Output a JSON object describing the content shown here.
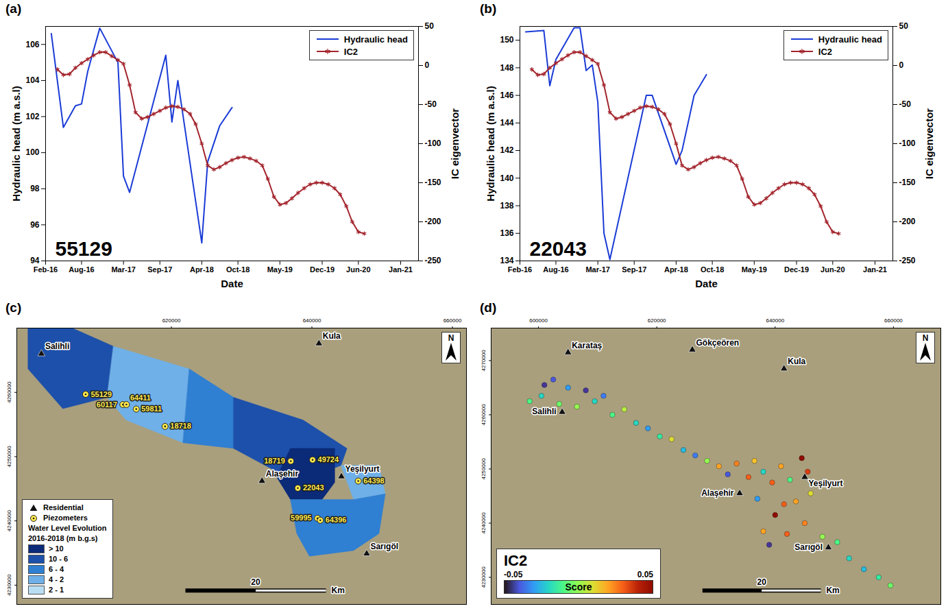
{
  "chart_data": [
    {
      "type": "line",
      "panel_label": "(a)",
      "annotation": "55129",
      "xlabel": "Date",
      "ylabel": "Hydraulic head (m a.s.l)",
      "y2label": "IC eigenvector",
      "xlim": [
        "2016-02",
        "2021-04"
      ],
      "xticks": [
        {
          "value": "2016-02",
          "label": "Feb-16"
        },
        {
          "value": "2016-08",
          "label": "Aug-16"
        },
        {
          "value": "2017-03",
          "label": "Mar-17"
        },
        {
          "value": "2017-09",
          "label": "Sep-17"
        },
        {
          "value": "2018-04",
          "label": "Apr-18"
        },
        {
          "value": "2018-10",
          "label": "Oct-18"
        },
        {
          "value": "2019-05",
          "label": "May-19"
        },
        {
          "value": "2019-12",
          "label": "Dec-19"
        },
        {
          "value": "2020-06",
          "label": "Jun-20"
        },
        {
          "value": "2021-01",
          "label": "Jan-21"
        }
      ],
      "ylim": [
        94,
        107
      ],
      "yticks": [
        94,
        96,
        98,
        100,
        102,
        104,
        106
      ],
      "y2lim": [
        -250,
        50
      ],
      "y2ticks": [
        -250,
        -200,
        -150,
        -100,
        -50,
        0,
        50
      ],
      "legend": "top-right",
      "series": [
        {
          "name": "Hydraulic head",
          "color": "#1a3bd6",
          "marker": "none",
          "line_style": "solid",
          "x": [
            "2016-03",
            "2016-05",
            "2016-07",
            "2016-08",
            "2016-09",
            "2016-11",
            "2017-02",
            "2017-03",
            "2017-04",
            "2017-10",
            "2017-11",
            "2017-12",
            "2018-04",
            "2018-05",
            "2018-07",
            "2018-09"
          ],
          "values": [
            106.6,
            101.4,
            102.6,
            102.7,
            104.5,
            106.9,
            105.0,
            98.7,
            97.8,
            105.4,
            101.7,
            104.0,
            95.0,
            99.5,
            101.5,
            102.5
          ]
        },
        {
          "name": "IC2",
          "color": "#a3232b",
          "marker": "asterisk",
          "line_style": "solid",
          "axis": "y2",
          "x": [
            "2016-04",
            "2016-05",
            "2016-06",
            "2016-07",
            "2016-08",
            "2016-09",
            "2016-10",
            "2016-11",
            "2016-12",
            "2017-01",
            "2017-02",
            "2017-03",
            "2017-04",
            "2017-05",
            "2017-06",
            "2017-07",
            "2017-08",
            "2017-09",
            "2017-10",
            "2017-11",
            "2017-12",
            "2018-01",
            "2018-02",
            "2018-03",
            "2018-04",
            "2018-05",
            "2018-06",
            "2018-07",
            "2018-08",
            "2018-09",
            "2018-10",
            "2018-11",
            "2018-12",
            "2019-01",
            "2019-02",
            "2019-03",
            "2019-04",
            "2019-05",
            "2019-06",
            "2019-07",
            "2019-08",
            "2019-09",
            "2019-10",
            "2019-11",
            "2019-12",
            "2020-01",
            "2020-02",
            "2020-03",
            "2020-04",
            "2020-05",
            "2020-06",
            "2020-07"
          ],
          "values": [
            -5,
            -12,
            -11,
            -3,
            3,
            8,
            13,
            17,
            17,
            12,
            7,
            2,
            -25,
            -60,
            -68,
            -66,
            -62,
            -58,
            -54,
            -52,
            -53,
            -56,
            -62,
            -75,
            -100,
            -128,
            -133,
            -130,
            -125,
            -121,
            -118,
            -117,
            -119,
            -122,
            -128,
            -145,
            -168,
            -178,
            -176,
            -170,
            -163,
            -157,
            -152,
            -150,
            -150,
            -152,
            -157,
            -165,
            -180,
            -200,
            -213,
            -215
          ]
        }
      ]
    },
    {
      "type": "line",
      "panel_label": "(b)",
      "annotation": "22043",
      "xlabel": "Date",
      "ylabel": "Hydraulic head (m a.s.l)",
      "y2label": "IC eigenvector",
      "xlim": [
        "2016-02",
        "2021-04"
      ],
      "xticks": [
        {
          "value": "2016-02",
          "label": "Feb-16"
        },
        {
          "value": "2016-08",
          "label": "Aug-16"
        },
        {
          "value": "2017-03",
          "label": "Mar-17"
        },
        {
          "value": "2017-09",
          "label": "Sep-17"
        },
        {
          "value": "2018-04",
          "label": "Apr-18"
        },
        {
          "value": "2018-10",
          "label": "Oct-18"
        },
        {
          "value": "2019-05",
          "label": "May-19"
        },
        {
          "value": "2019-12",
          "label": "Dec-19"
        },
        {
          "value": "2020-06",
          "label": "Jun-20"
        },
        {
          "value": "2021-01",
          "label": "Jan-21"
        }
      ],
      "ylim": [
        134,
        151
      ],
      "yticks": [
        134,
        136,
        138,
        140,
        142,
        144,
        146,
        148,
        150
      ],
      "y2lim": [
        -250,
        50
      ],
      "y2ticks": [
        -250,
        -200,
        -150,
        -100,
        -50,
        0,
        50
      ],
      "legend": "top-right",
      "series": [
        {
          "name": "Hydraulic head",
          "color": "#1a3bd6",
          "marker": "none",
          "line_style": "solid",
          "x": [
            "2016-03",
            "2016-06",
            "2016-07",
            "2016-08",
            "2016-11",
            "2016-12",
            "2017-01",
            "2017-02",
            "2017-03",
            "2017-04",
            "2017-05",
            "2017-11",
            "2017-12",
            "2018-04",
            "2018-05",
            "2018-07",
            "2018-09"
          ],
          "values": [
            150.6,
            150.7,
            146.7,
            148.6,
            150.9,
            150.9,
            147.8,
            148.2,
            145.5,
            136.0,
            134.1,
            146.0,
            146.0,
            141.0,
            142.0,
            146.0,
            147.5
          ]
        },
        {
          "name": "IC2",
          "color": "#a3232b",
          "marker": "asterisk",
          "line_style": "solid",
          "axis": "y2",
          "x": [
            "2016-04",
            "2016-05",
            "2016-06",
            "2016-07",
            "2016-08",
            "2016-09",
            "2016-10",
            "2016-11",
            "2016-12",
            "2017-01",
            "2017-02",
            "2017-03",
            "2017-04",
            "2017-05",
            "2017-06",
            "2017-07",
            "2017-08",
            "2017-09",
            "2017-10",
            "2017-11",
            "2017-12",
            "2018-01",
            "2018-02",
            "2018-03",
            "2018-04",
            "2018-05",
            "2018-06",
            "2018-07",
            "2018-08",
            "2018-09",
            "2018-10",
            "2018-11",
            "2018-12",
            "2019-01",
            "2019-02",
            "2019-03",
            "2019-04",
            "2019-05",
            "2019-06",
            "2019-07",
            "2019-08",
            "2019-09",
            "2019-10",
            "2019-11",
            "2019-12",
            "2020-01",
            "2020-02",
            "2020-03",
            "2020-04",
            "2020-05",
            "2020-06",
            "2020-07"
          ],
          "values": [
            -5,
            -12,
            -11,
            -3,
            3,
            8,
            13,
            17,
            17,
            12,
            7,
            2,
            -25,
            -60,
            -68,
            -66,
            -62,
            -58,
            -54,
            -52,
            -53,
            -56,
            -62,
            -75,
            -100,
            -128,
            -133,
            -130,
            -125,
            -121,
            -118,
            -117,
            -119,
            -122,
            -128,
            -145,
            -168,
            -178,
            -176,
            -170,
            -163,
            -157,
            -152,
            -150,
            -150,
            -152,
            -157,
            -165,
            -180,
            -200,
            -213,
            -215
          ]
        }
      ]
    },
    {
      "type": "map",
      "panel_label": "(c)",
      "xlim": [
        598000,
        662000
      ],
      "ylim": [
        4227000,
        4270000
      ],
      "xticks": [
        620000,
        640000,
        660000
      ],
      "yticks": [
        4230000,
        4240000,
        4250000,
        4260000
      ],
      "legend": "bottom-left",
      "legend_title": [
        "Water Level Evolution",
        "2016-2018 (m b.g.s)"
      ],
      "classes": [
        {
          "name": "> 10",
          "color": "#0b2a78"
        },
        {
          "name": "10 - 6",
          "color": "#1d50aa"
        },
        {
          "name": "6 - 4",
          "color": "#2f7fd2"
        },
        {
          "name": "4 - 2",
          "color": "#6fb0e8"
        },
        {
          "name": "2 - 1",
          "color": "#b9def4"
        }
      ],
      "zones": [
        {
          "class": "10 - 6",
          "polygon": [
            [
              599600,
              4270000
            ],
            [
              605900,
              4270000
            ],
            [
              611750,
              4267170
            ],
            [
              610850,
              4259230
            ],
            [
              604550,
              4257460
            ],
            [
              599600,
              4263640
            ]
          ]
        },
        {
          "class": "4 - 2",
          "polygon": [
            [
              611750,
              4267170
            ],
            [
              622550,
              4263640
            ],
            [
              621650,
              4252160
            ],
            [
              613550,
              4255690
            ],
            [
              610850,
              4259230
            ]
          ]
        },
        {
          "class": "6 - 4",
          "polygon": [
            [
              622550,
              4263640
            ],
            [
              628850,
              4259230
            ],
            [
              628850,
              4251280
            ],
            [
              621650,
              4252160
            ]
          ]
        },
        {
          "class": "10 - 6",
          "polygon": [
            [
              628850,
              4259230
            ],
            [
              638750,
              4255690
            ],
            [
              645000,
              4251280
            ],
            [
              644150,
              4248630
            ],
            [
              637850,
              4245980
            ],
            [
              633350,
              4248630
            ],
            [
              628850,
              4251280
            ]
          ]
        },
        {
          "class": "> 10",
          "polygon": [
            [
              636950,
              4251280
            ],
            [
              643250,
              4251280
            ],
            [
              643250,
              4245980
            ],
            [
              641450,
              4243330
            ],
            [
              636950,
              4243330
            ],
            [
              635000,
              4246800
            ]
          ]
        },
        {
          "class": "4 - 2",
          "polygon": [
            [
              644150,
              4248630
            ],
            [
              649550,
              4248630
            ],
            [
              650450,
              4244210
            ],
            [
              645950,
              4243330
            ]
          ]
        },
        {
          "class": "6 - 4",
          "polygon": [
            [
              636950,
              4243330
            ],
            [
              645950,
              4243330
            ],
            [
              650450,
              4244210
            ],
            [
              649550,
              4238030
            ],
            [
              645950,
              4235390
            ],
            [
              639650,
              4234500
            ],
            [
              637850,
              4238030
            ]
          ]
        }
      ],
      "points": {
        "name": "Piezometers",
        "labels": [
          "55129",
          "60117",
          "64411",
          "59811",
          "18718",
          "18719",
          "49724",
          "22043",
          "64398",
          "59995",
          "64396"
        ],
        "x": [
          607800,
          613100,
          613600,
          615000,
          619100,
          637000,
          640100,
          638000,
          646600,
          640800,
          641200
        ],
        "y": [
          4259700,
          4258100,
          4258100,
          4257400,
          4254700,
          4249300,
          4249500,
          4245100,
          4246200,
          4240400,
          4240100
        ]
      },
      "towns": {
        "name": "Residential",
        "labels": [
          "Salihli",
          "Kula",
          "Alaşehir",
          "Yeşilyurt",
          "Sarıgöl"
        ],
        "x": [
          601500,
          641000,
          632900,
          644200,
          647800
        ],
        "y": [
          4266000,
          4267600,
          4246200,
          4246900,
          4234900
        ]
      },
      "scalebar": {
        "length": 20,
        "unit": "Km"
      },
      "north": "N"
    },
    {
      "type": "map",
      "panel_label": "(d)",
      "annotation": "IC2",
      "xlim": [
        592000,
        668000
      ],
      "ylim": [
        4225000,
        4276000
      ],
      "xticks": [
        600000,
        620000,
        640000,
        660000
      ],
      "yticks": [
        4230000,
        4240000,
        4250000,
        4260000,
        4270000
      ],
      "colorbar": {
        "label": "Score",
        "range": [
          -0.05,
          0.05
        ],
        "ticks": [
          -0.05,
          0.05
        ]
      },
      "points": {
        "x": [
          598500,
          600500,
          601000,
          602500,
          603500,
          605000,
          606500,
          608000,
          609500,
          611000,
          612500,
          614500,
          616500,
          618500,
          620500,
          622500,
          624500,
          626500,
          628500,
          630500,
          632000,
          633500,
          635500,
          636500,
          638000,
          639500,
          641000,
          642500,
          644500,
          645500,
          637000,
          640000,
          641500,
          643500,
          646000,
          638000,
          639000,
          642000,
          645000,
          648000,
          650500,
          652500,
          655000,
          657500,
          659500
        ],
        "y": [
          4262500,
          4263500,
          4265500,
          4266500,
          4262000,
          4265000,
          4261500,
          4264500,
          4262500,
          4263500,
          4260000,
          4261000,
          4258500,
          4257500,
          4256000,
          4255500,
          4253500,
          4252500,
          4251500,
          4250500,
          4249000,
          4251000,
          4248500,
          4251500,
          4249500,
          4247500,
          4250500,
          4248000,
          4252000,
          4249500,
          4244500,
          4241500,
          4243500,
          4244000,
          4245500,
          4238500,
          4236000,
          4238000,
          4240000,
          4237500,
          4236500,
          4233500,
          4231500,
          4230000,
          4228500
        ],
        "score": [
          -0.01,
          -0.02,
          -0.045,
          -0.04,
          -0.005,
          -0.03,
          0.0,
          -0.045,
          -0.02,
          -0.035,
          -0.01,
          0.005,
          -0.02,
          -0.03,
          -0.015,
          0.01,
          -0.025,
          -0.035,
          0.0,
          0.02,
          -0.04,
          0.025,
          0.03,
          0.015,
          -0.02,
          0.03,
          0.02,
          -0.01,
          0.05,
          0.035,
          -0.03,
          0.05,
          0.03,
          0.02,
          0.01,
          0.02,
          -0.045,
          0.03,
          0.025,
          0.0,
          -0.01,
          -0.02,
          -0.025,
          -0.015,
          -0.005
        ]
      },
      "towns": {
        "labels": [
          "Karataş",
          "Gökçeören",
          "Kula",
          "Salihli",
          "Alaşehir",
          "Yeşilyurt",
          "Sarıgöl"
        ],
        "x": [
          605000,
          626000,
          641500,
          604000,
          634000,
          645000,
          649000
        ],
        "y": [
          4271500,
          4272000,
          4268500,
          4260500,
          4245500,
          4248500,
          4235500
        ]
      },
      "scalebar": {
        "length": 20,
        "unit": "Km"
      },
      "north": "N"
    }
  ]
}
